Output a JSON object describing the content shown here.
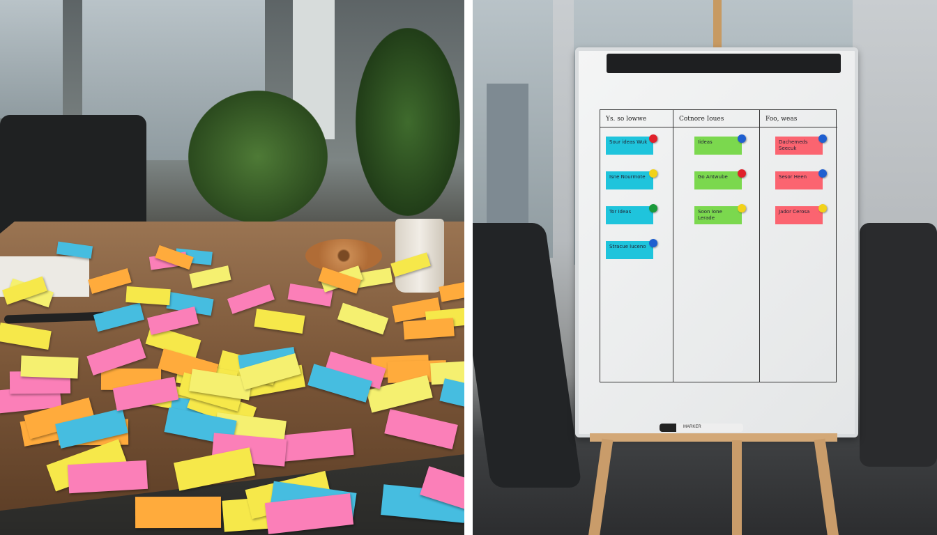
{
  "left_photo": {
    "note_colors": [
      "#f6e84a",
      "#fb7fb8",
      "#ffab3c",
      "#46bde0",
      "#f5f070"
    ],
    "objects": [
      "coffee-mug",
      "bagel",
      "pen",
      "office-chair",
      "plant"
    ]
  },
  "right_photo": {
    "whiteboard": {
      "columns": [
        {
          "header": "Ys. so lowwe",
          "color": "#1fc4dc",
          "cards": [
            "Sour ideas Wuk",
            "Isne Nourmote",
            "Tor Ideas",
            "Stracue Iuceno"
          ],
          "pins": [
            "#e0212b",
            "#f2d21a",
            "#1a9a3a",
            "#1f5fd0"
          ]
        },
        {
          "header": "Cotnore Ioues",
          "color": "#7bd84e",
          "cards": [
            "Iideas",
            "Go Antwube",
            "Soon Ione Lerade"
          ],
          "pins": [
            "#1f5fd0",
            "#e0212b",
            "#f2d21a"
          ]
        },
        {
          "header": "Foo, weas",
          "color": "#fb6470",
          "cards": [
            "Dachemeds Seecuk",
            "Sesor Heen",
            "Jador Cerosa"
          ],
          "pins": [
            "#1f5fd0",
            "#1f5fd0",
            "#f2d21a"
          ]
        }
      ]
    },
    "marker_label": "MARKER"
  }
}
